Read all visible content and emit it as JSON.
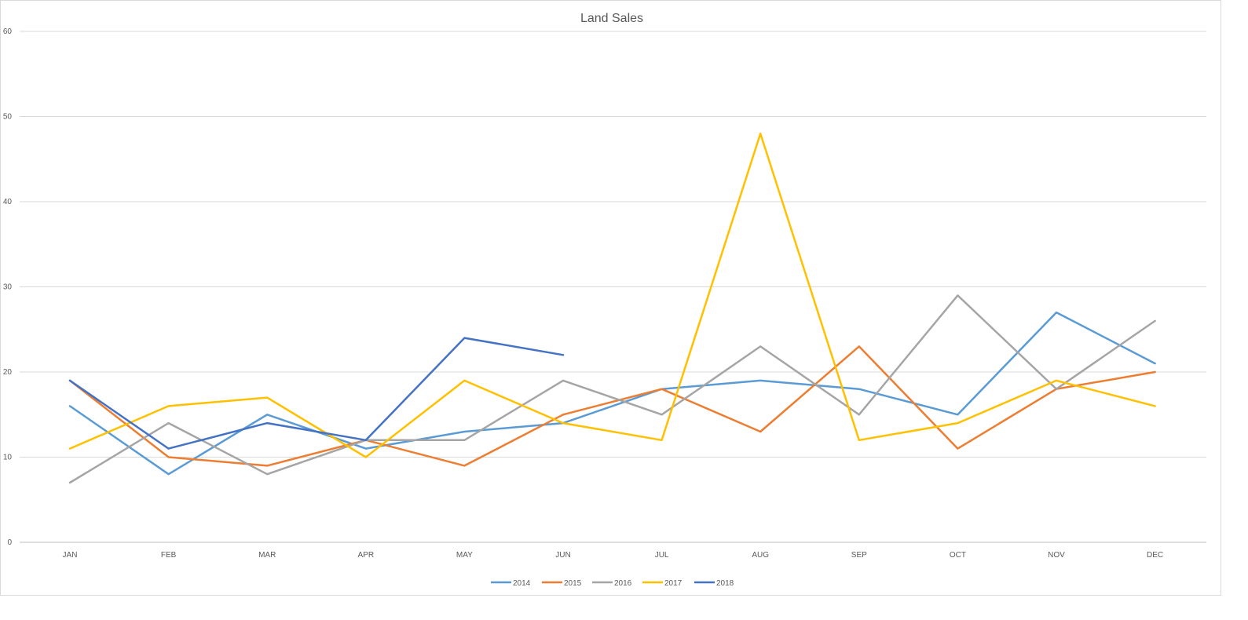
{
  "chart_data": {
    "type": "line",
    "title": "Land Sales",
    "xlabel": "",
    "ylabel": "",
    "categories": [
      "JAN",
      "FEB",
      "MAR",
      "APR",
      "MAY",
      "JUN",
      "JUL",
      "AUG",
      "SEP",
      "OCT",
      "NOV",
      "DEC"
    ],
    "ylim": [
      0,
      60
    ],
    "yticks": [
      "0",
      "10",
      "20",
      "30",
      "40",
      "50",
      "60"
    ],
    "grid": true,
    "legend_position": "bottom",
    "series": [
      {
        "name": "2014",
        "color": "#5B9BD5",
        "values": [
          16,
          8,
          15,
          11,
          13,
          14,
          18,
          19,
          18,
          15,
          27,
          21
        ]
      },
      {
        "name": "2015",
        "color": "#ED7D31",
        "values": [
          19,
          10,
          9,
          12,
          9,
          15,
          18,
          13,
          23,
          11,
          18,
          20
        ]
      },
      {
        "name": "2016",
        "color": "#A5A5A5",
        "values": [
          7,
          14,
          8,
          12,
          12,
          19,
          15,
          23,
          15,
          29,
          18,
          26
        ]
      },
      {
        "name": "2017",
        "color": "#FFC000",
        "values": [
          11,
          16,
          17,
          10,
          19,
          14,
          12,
          48,
          12,
          14,
          19,
          16
        ]
      },
      {
        "name": "2018",
        "color": "#4472C4",
        "values": [
          19,
          11,
          14,
          12,
          24,
          22,
          null,
          null,
          null,
          null,
          null,
          null
        ]
      }
    ]
  }
}
